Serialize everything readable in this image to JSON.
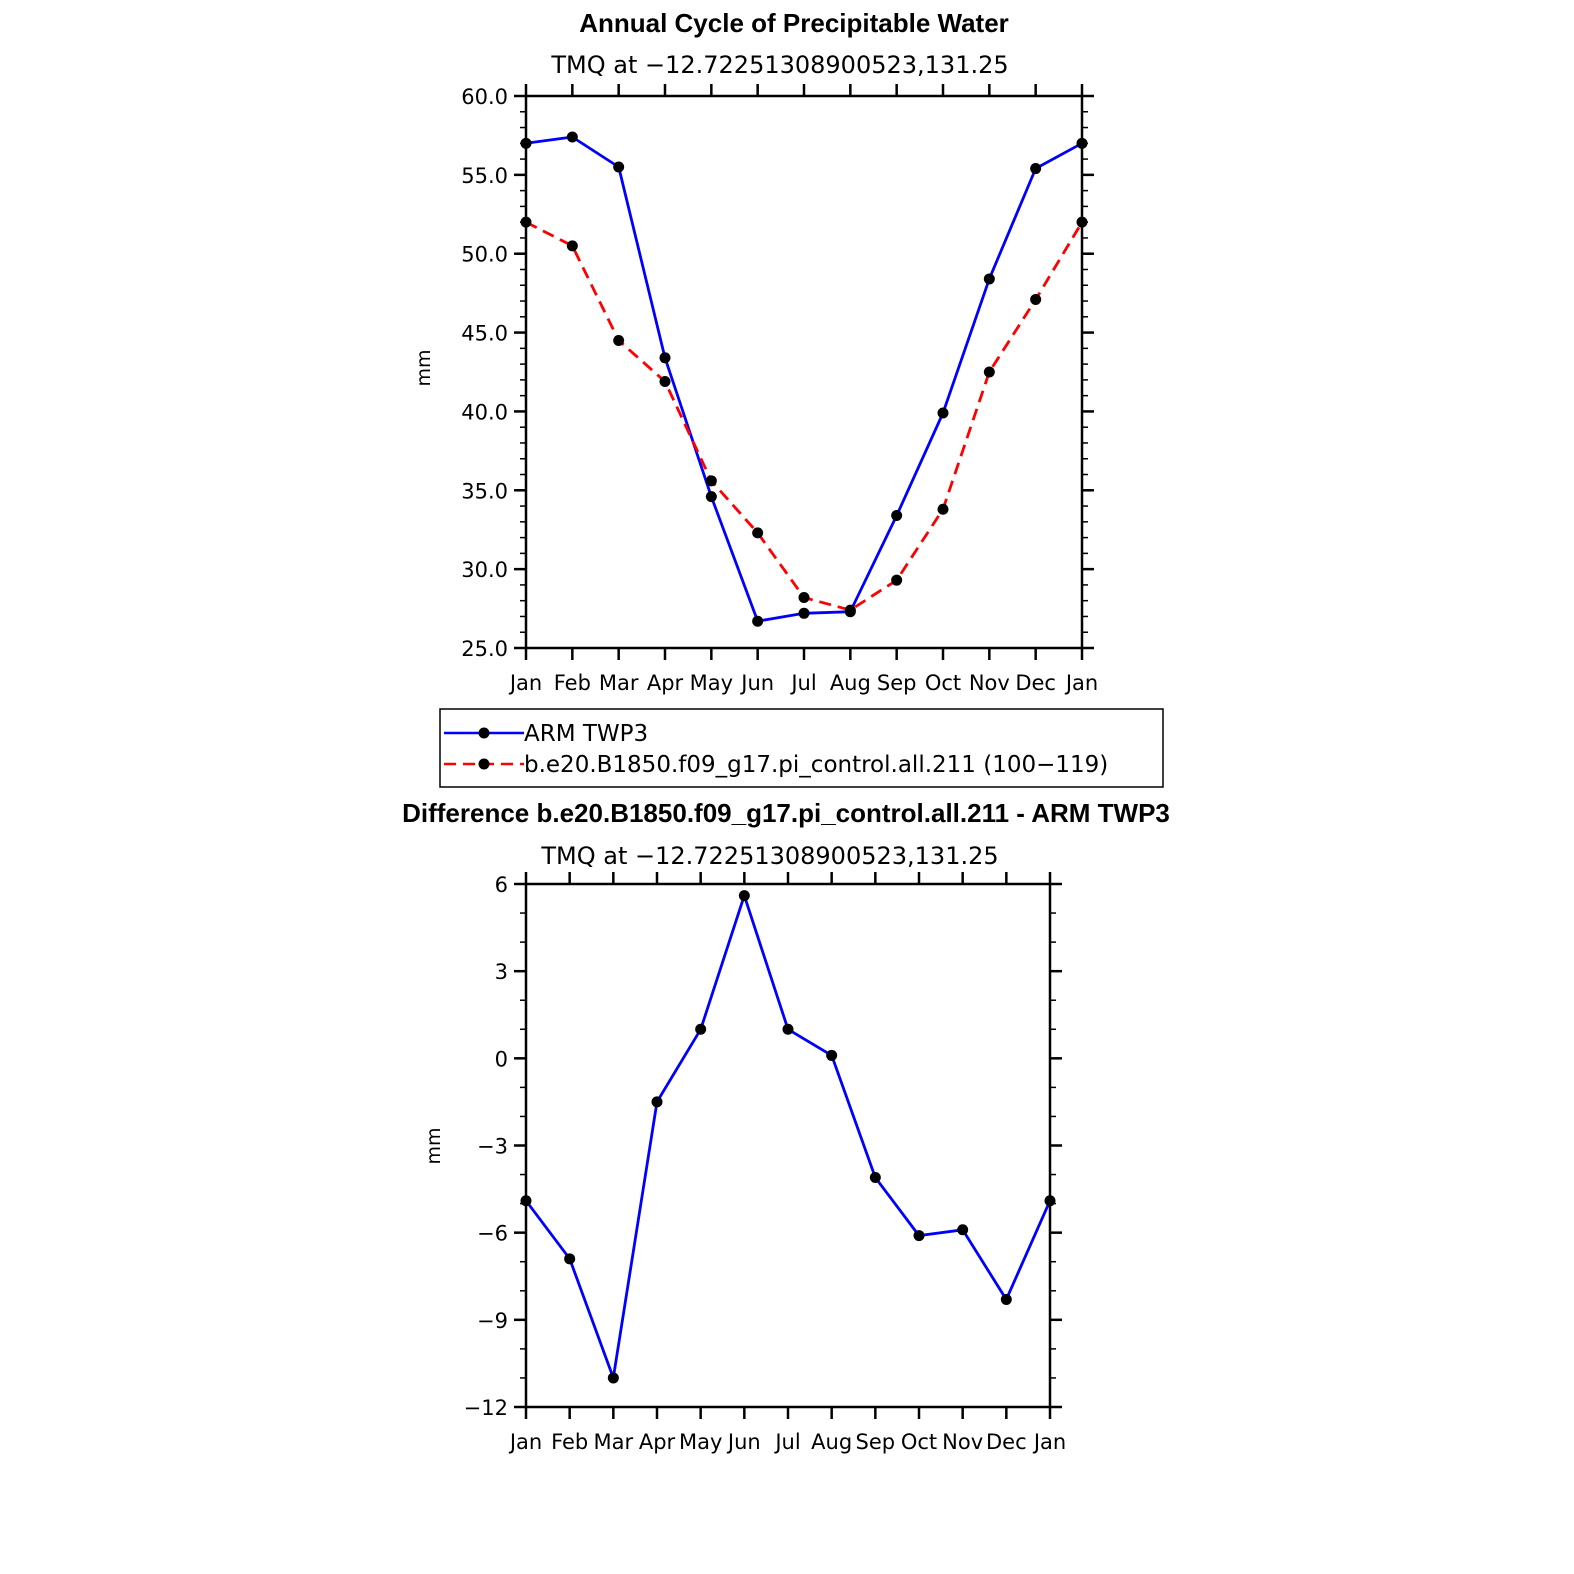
{
  "chart_data": [
    {
      "type": "line",
      "title": "Annual Cycle of Precipitable Water",
      "subtitle": "TMQ at −12.72251308900523,131.25",
      "xlabel": "",
      "ylabel": "mm",
      "ylim": [
        25,
        60
      ],
      "yticks": [
        "60.0",
        "55.0",
        "50.0",
        "45.0",
        "40.0",
        "35.0",
        "30.0",
        "25.0"
      ],
      "categories": [
        "Jan",
        "Feb",
        "Mar",
        "Apr",
        "May",
        "Jun",
        "Jul",
        "Aug",
        "Sep",
        "Oct",
        "Nov",
        "Dec",
        "Jan"
      ],
      "legend_position": "bottom",
      "series": [
        {
          "name": "ARM TWP3",
          "color": "#0000ff",
          "dash": "solid",
          "values": [
            57.0,
            57.4,
            55.5,
            43.4,
            34.6,
            26.7,
            27.2,
            27.3,
            33.4,
            39.9,
            48.4,
            55.4,
            57.0
          ]
        },
        {
          "name": "b.e20.B1850.f09_g17.pi_control.all.211 (100−119)",
          "color": "#ff0000",
          "dash": "dashed",
          "values": [
            52.0,
            50.5,
            44.5,
            41.9,
            35.6,
            32.3,
            28.2,
            27.4,
            29.3,
            33.8,
            42.5,
            47.1,
            52.0
          ]
        }
      ]
    },
    {
      "type": "line",
      "title": "Difference b.e20.B1850.f09_g17.pi_control.all.211 - ARM TWP3",
      "subtitle": "TMQ at −12.72251308900523,131.25",
      "xlabel": "",
      "ylabel": "mm",
      "ylim": [
        -12,
        6
      ],
      "yticks": [
        "6",
        "3",
        "0",
        "−3",
        "−6",
        "−9",
        "−12"
      ],
      "categories": [
        "Jan",
        "Feb",
        "Mar",
        "Apr",
        "May",
        "Jun",
        "Jul",
        "Aug",
        "Sep",
        "Oct",
        "Nov",
        "Dec",
        "Jan"
      ],
      "series": [
        {
          "color": "#0000ff",
          "dash": "solid",
          "values": [
            -4.9,
            -6.9,
            -11.0,
            -1.5,
            1.0,
            5.6,
            1.0,
            0.1,
            -4.1,
            -6.1,
            -5.9,
            -8.3,
            -4.9
          ]
        }
      ]
    }
  ]
}
